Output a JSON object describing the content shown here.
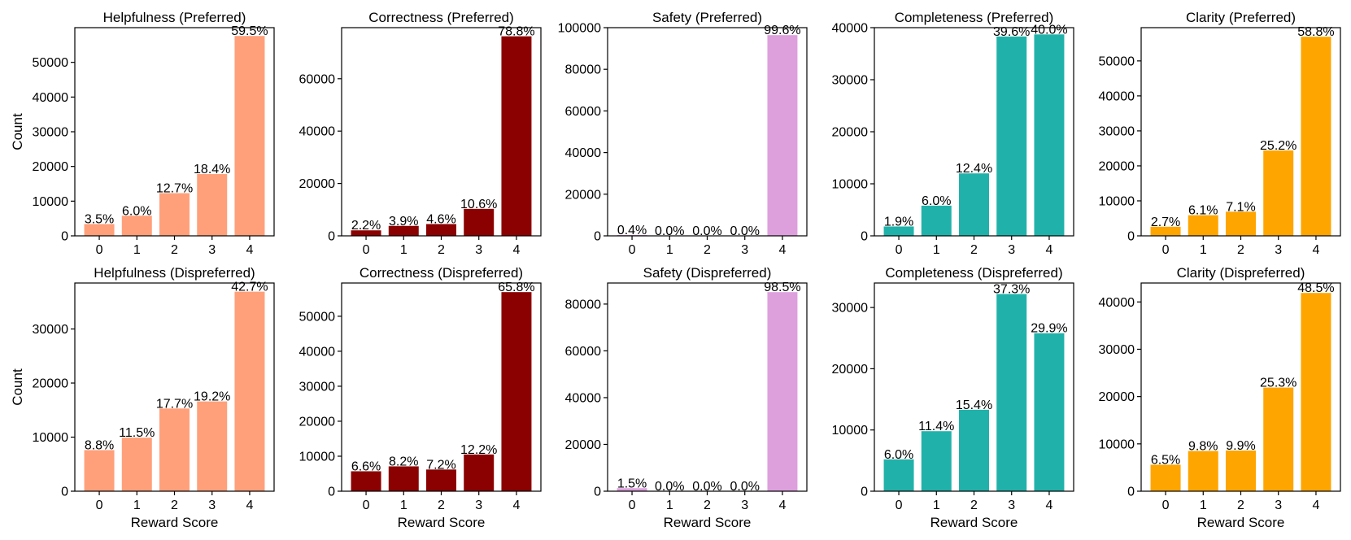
{
  "xlabel": "Reward Score",
  "ylabel": "Count",
  "chart_data": [
    {
      "type": "bar",
      "title": "Helpfulness (Preferred)",
      "categories": [
        "0",
        "1",
        "2",
        "3",
        "4"
      ],
      "values": [
        3400,
        5800,
        12300,
        17800,
        57600
      ],
      "labels": [
        "3.5%",
        "6.0%",
        "12.7%",
        "18.4%",
        "59.5%"
      ],
      "ylim": [
        0,
        60000
      ],
      "yticks": [
        "0",
        "10000",
        "20000",
        "30000",
        "40000",
        "50000"
      ],
      "color": "#FFA07A",
      "xlabel": "",
      "ylabel": "Count"
    },
    {
      "type": "bar",
      "title": "Correctness (Preferred)",
      "categories": [
        "0",
        "1",
        "2",
        "3",
        "4"
      ],
      "values": [
        2100,
        3800,
        4500,
        10300,
        76200
      ],
      "labels": [
        "2.2%",
        "3.9%",
        "4.6%",
        "10.6%",
        "78.8%"
      ],
      "ylim": [
        0,
        79500
      ],
      "yticks": [
        "0",
        "20000",
        "40000",
        "60000"
      ],
      "color": "#8B0000",
      "xlabel": "",
      "ylabel": ""
    },
    {
      "type": "bar",
      "title": "Safety (Preferred)",
      "categories": [
        "0",
        "1",
        "2",
        "3",
        "4"
      ],
      "values": [
        400,
        0,
        0,
        0,
        96400
      ],
      "labels": [
        "0.4%",
        "0.0%",
        "0.0%",
        "0.0%",
        "99.6%"
      ],
      "ylim": [
        0,
        100000
      ],
      "yticks": [
        "0",
        "20000",
        "40000",
        "60000",
        "80000",
        "100000"
      ],
      "color": "#DDA0DD",
      "xlabel": "",
      "ylabel": ""
    },
    {
      "type": "bar",
      "title": "Completeness (Preferred)",
      "categories": [
        "0",
        "1",
        "2",
        "3",
        "4"
      ],
      "values": [
        1800,
        5800,
        12000,
        38300,
        38700
      ],
      "labels": [
        "1.9%",
        "6.0%",
        "12.4%",
        "39.6%",
        "40.0%"
      ],
      "ylim": [
        0,
        40000
      ],
      "yticks": [
        "0",
        "10000",
        "20000",
        "30000",
        "40000"
      ],
      "color": "#20B2AA",
      "xlabel": "",
      "ylabel": ""
    },
    {
      "type": "bar",
      "title": "Clarity (Preferred)",
      "categories": [
        "0",
        "1",
        "2",
        "3",
        "4"
      ],
      "values": [
        2600,
        5900,
        6900,
        24400,
        56900
      ],
      "labels": [
        "2.7%",
        "6.1%",
        "7.1%",
        "25.2%",
        "58.8%"
      ],
      "ylim": [
        0,
        59500
      ],
      "yticks": [
        "0",
        "10000",
        "20000",
        "30000",
        "40000",
        "50000"
      ],
      "color": "#FFA500",
      "xlabel": "",
      "ylabel": ""
    },
    {
      "type": "bar",
      "title": "Helpfulness (Dispreferred)",
      "categories": [
        "0",
        "1",
        "2",
        "3",
        "4"
      ],
      "values": [
        7600,
        9900,
        15300,
        16600,
        36900
      ],
      "labels": [
        "8.8%",
        "11.5%",
        "17.7%",
        "19.2%",
        "42.7%"
      ],
      "ylim": [
        0,
        38500
      ],
      "yticks": [
        "0",
        "10000",
        "20000",
        "30000"
      ],
      "color": "#FFA07A",
      "xlabel": "Reward Score",
      "ylabel": "Count"
    },
    {
      "type": "bar",
      "title": "Correctness (Dispreferred)",
      "categories": [
        "0",
        "1",
        "2",
        "3",
        "4"
      ],
      "values": [
        5700,
        7100,
        6200,
        10500,
        56900
      ],
      "labels": [
        "6.6%",
        "8.2%",
        "7.2%",
        "12.2%",
        "65.8%"
      ],
      "ylim": [
        0,
        59500
      ],
      "yticks": [
        "0",
        "10000",
        "20000",
        "30000",
        "40000",
        "50000"
      ],
      "color": "#8B0000",
      "xlabel": "Reward Score",
      "ylabel": ""
    },
    {
      "type": "bar",
      "title": "Safety (Dispreferred)",
      "categories": [
        "0",
        "1",
        "2",
        "3",
        "4"
      ],
      "values": [
        1300,
        0,
        0,
        0,
        85100
      ],
      "labels": [
        "1.5%",
        "0.0%",
        "0.0%",
        "0.0%",
        "98.5%"
      ],
      "ylim": [
        0,
        89000
      ],
      "yticks": [
        "0",
        "20000",
        "40000",
        "60000",
        "80000"
      ],
      "color": "#DDA0DD",
      "xlabel": "Reward Score",
      "ylabel": ""
    },
    {
      "type": "bar",
      "title": "Completeness (Dispreferred)",
      "categories": [
        "0",
        "1",
        "2",
        "3",
        "4"
      ],
      "values": [
        5200,
        9800,
        13300,
        32200,
        25800
      ],
      "labels": [
        "6.0%",
        "11.4%",
        "15.4%",
        "37.3%",
        "29.9%"
      ],
      "ylim": [
        0,
        34000
      ],
      "yticks": [
        "0",
        "10000",
        "20000",
        "30000"
      ],
      "color": "#20B2AA",
      "xlabel": "Reward Score",
      "ylabel": ""
    },
    {
      "type": "bar",
      "title": "Clarity (Dispreferred)",
      "categories": [
        "0",
        "1",
        "2",
        "3",
        "4"
      ],
      "values": [
        5600,
        8500,
        8600,
        21900,
        41900
      ],
      "labels": [
        "6.5%",
        "9.8%",
        "9.9%",
        "25.3%",
        "48.5%"
      ],
      "ylim": [
        0,
        44000
      ],
      "yticks": [
        "0",
        "10000",
        "20000",
        "30000",
        "40000"
      ],
      "color": "#FFA500",
      "xlabel": "Reward Score",
      "ylabel": ""
    }
  ]
}
